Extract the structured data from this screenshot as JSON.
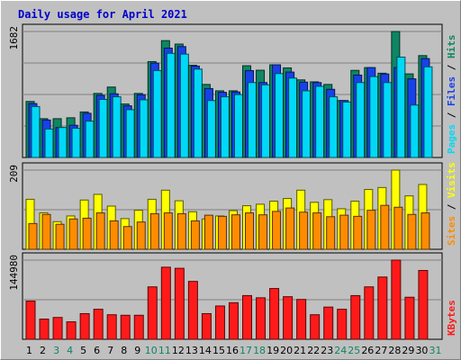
{
  "chart_data": {
    "type": "bar",
    "title": "Daily usage for April 2021",
    "categories": [
      "1",
      "2",
      "3",
      "4",
      "5",
      "6",
      "7",
      "8",
      "9",
      "10",
      "11",
      "12",
      "13",
      "14",
      "15",
      "16",
      "17",
      "18",
      "19",
      "20",
      "21",
      "22",
      "23",
      "24",
      "25",
      "26",
      "27",
      "28",
      "29",
      "30",
      "31"
    ],
    "weekend_days": [
      "3",
      "4",
      "10",
      "11",
      "17",
      "18",
      "24",
      "25",
      "31"
    ],
    "panels": [
      {
        "name": "hits",
        "ymax_label": "1682",
        "ymax": 1682,
        "side_labels": [
          "Hits",
          "Files",
          "Pages"
        ],
        "side_separator": " / ",
        "series": [
          {
            "name": "Hits",
            "color": "#0e8663",
            "values": [
              748,
              518,
              518,
              530,
              608,
              855,
              940,
              714,
              855,
              1280,
              1560,
              1514,
              1231,
              975,
              890,
              890,
              1225,
              1165,
              1237,
              1196,
              1036,
              1010,
              975,
              760,
              1163,
              1200,
              1125,
              1682,
              1116,
              1360,
              null
            ]
          },
          {
            "name": "Files",
            "color": "#1841e8",
            "values": [
              720,
              500,
              400,
              430,
              590,
              830,
              850,
              690,
              838,
              1260,
              1460,
              1480,
              1220,
              920,
              870,
              875,
              1160,
              1000,
              1237,
              1140,
              1006,
              1000,
              910,
              760,
              1100,
              1200,
              1115,
              1200,
              1050,
              1320,
              null
            ]
          },
          {
            "name": "Pages",
            "color": "#00d8f8",
            "values": [
              680,
              380,
              400,
              390,
              485,
              775,
              810,
              638,
              770,
              1160,
              1390,
              1380,
              1180,
              760,
              810,
              840,
              1000,
              970,
              1120,
              1060,
              890,
              950,
              810,
              740,
              1000,
              1080,
              1000,
              1340,
              700,
              1210,
              null
            ]
          }
        ]
      },
      {
        "name": "visits",
        "ymax_label": "209",
        "ymax": 209,
        "side_labels": [
          "Visits",
          "Sites"
        ],
        "side_separator": " / ",
        "series": [
          {
            "name": "Visits",
            "color": "#ffff00",
            "values": [
              132,
              96,
              73,
              88,
              130,
              145,
              114,
              81,
              103,
              132,
              156,
              128,
              99,
              80,
              88,
              102,
              115,
              119,
              127,
              134,
              156,
              124,
              131,
              107,
              127,
              158,
              163,
              209,
              141,
              171,
              null
            ]
          },
          {
            "name": "Sites",
            "color": "#ff8c00",
            "values": [
              68,
              92,
              66,
              80,
              82,
              96,
              75,
              60,
              72,
              94,
              96,
              94,
              75,
              90,
              87,
              91,
              96,
              91,
              100,
              109,
              98,
              96,
              86,
              90,
              87,
              103,
              116,
              111,
              92,
              96,
              null
            ]
          }
        ]
      },
      {
        "name": "kbytes",
        "ymax_label": "144980",
        "ymax": 144980,
        "side_labels": [
          "KBytes"
        ],
        "side_separator": "",
        "series": [
          {
            "name": "KBytes",
            "color": "#ff1a1a",
            "values": [
              70000,
              37000,
              40000,
              32000,
              47000,
              55000,
              45000,
              44000,
              44000,
              96000,
              132000,
              130000,
              106000,
              47000,
              61000,
              67000,
              80000,
              76000,
              93000,
              78000,
              73000,
              45000,
              59000,
              55000,
              80000,
              96000,
              114000,
              144980,
              77000,
              126000,
              null
            ]
          }
        ]
      }
    ]
  }
}
